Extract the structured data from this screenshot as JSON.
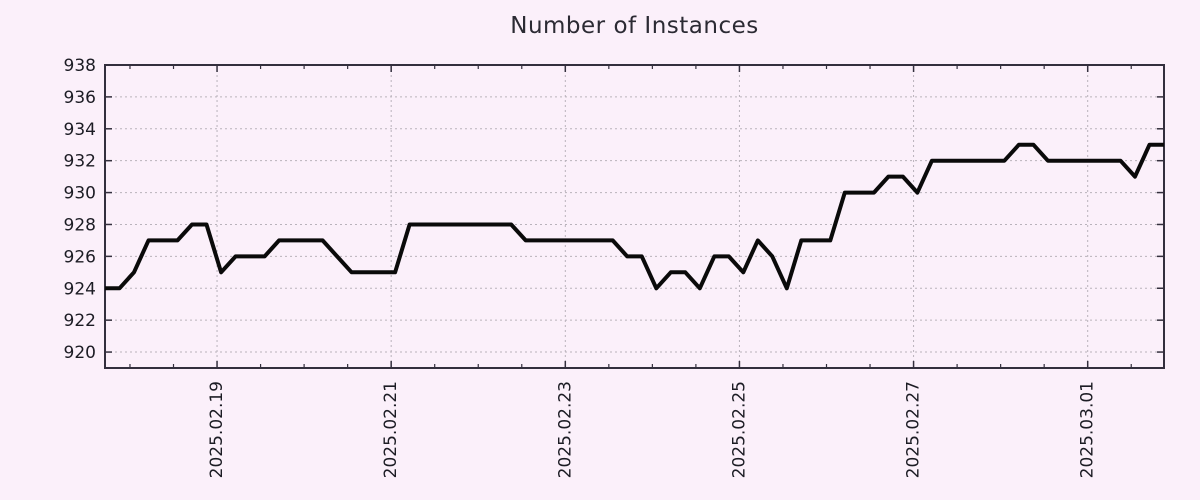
{
  "colors": {
    "background": "#fbf0fa",
    "title_text": "#2b2a33",
    "tick_text": "#1c1c24",
    "axis": "#332f3d",
    "grid": "#b9b2bb",
    "line": "#0a0a0a"
  },
  "chart_data": {
    "type": "line",
    "title": "Number of Instances",
    "series_name": "instances",
    "values": [
      924,
      924,
      925,
      927,
      927,
      927,
      928,
      928,
      925,
      926,
      926,
      926,
      927,
      927,
      927,
      927,
      926,
      925,
      925,
      925,
      925,
      928,
      928,
      928,
      928,
      928,
      928,
      928,
      928,
      927,
      927,
      927,
      927,
      927,
      927,
      927,
      926,
      926,
      924,
      925,
      925,
      924,
      926,
      926,
      925,
      927,
      926,
      924,
      927,
      927,
      927,
      930,
      930,
      930,
      931,
      931,
      930,
      932,
      932,
      932,
      932,
      932,
      932,
      933,
      933,
      932,
      932,
      932,
      932,
      932,
      932,
      931,
      933,
      933
    ],
    "ylim": [
      919,
      938
    ],
    "y_ticks": [
      920,
      922,
      924,
      926,
      928,
      930,
      932,
      934,
      936,
      938
    ],
    "x_axis": {
      "tick_labels": [
        "2025.02.19",
        "2025.02.21",
        "2025.02.23",
        "2025.02.25",
        "2025.02.27",
        "2025.03.01"
      ],
      "first_tick_frac": 0.1058,
      "tick_spacing_frac": 0.16443,
      "minor_per_major": 4
    },
    "grid": true,
    "legend": false
  }
}
